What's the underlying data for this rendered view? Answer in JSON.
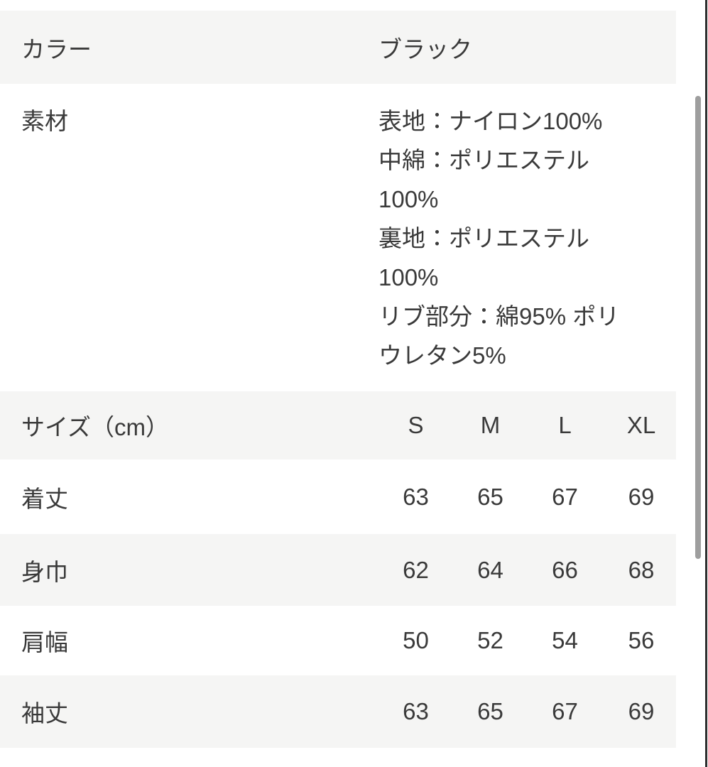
{
  "page": {
    "background_color": "#ffffff",
    "row_alt_background_color": "#f5f5f4",
    "text_color": "#3a3a3a",
    "scrollbar_color": "#9e9e9e",
    "window_edge_color": "#2e2e2e"
  },
  "table": {
    "rows": [
      {
        "type": "pair",
        "label": "カラー",
        "value": "ブラック"
      },
      {
        "type": "pair-multiline",
        "label": "素材",
        "value_lines": [
          "表地：ナイロン100%",
          "中綿：ポリエステル",
          "100%",
          "裏地：ポリエステル",
          "100%",
          "リブ部分：綿95% ポリ",
          "ウレタン5%"
        ]
      },
      {
        "type": "size-header",
        "label": "サイズ（cm）",
        "columns": [
          "S",
          "M",
          "L",
          "XL"
        ]
      },
      {
        "type": "measure",
        "label": "着丈",
        "values": [
          "63",
          "65",
          "67",
          "69"
        ]
      },
      {
        "type": "measure",
        "label": "身巾",
        "values": [
          "62",
          "64",
          "66",
          "68"
        ]
      },
      {
        "type": "measure",
        "label": "肩幅",
        "values": [
          "50",
          "52",
          "54",
          "56"
        ]
      },
      {
        "type": "measure",
        "label": "袖丈",
        "values": [
          "63",
          "65",
          "67",
          "69"
        ]
      }
    ]
  }
}
